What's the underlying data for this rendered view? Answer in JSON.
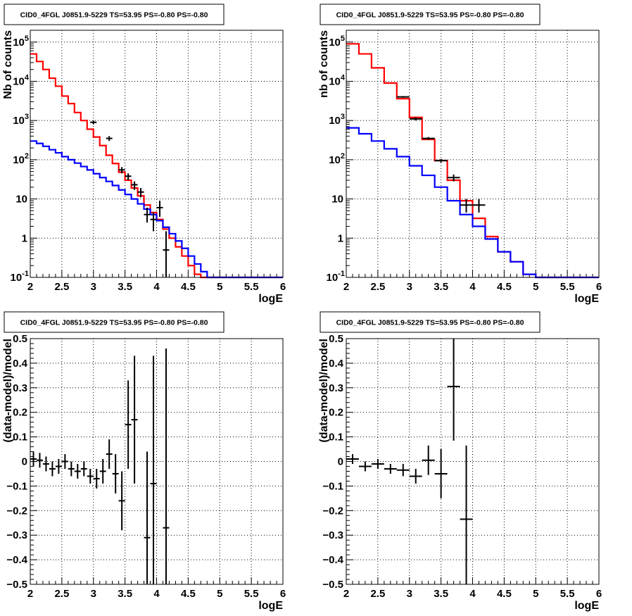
{
  "panels": [
    {
      "title": "CID0_4FGL J0851.9-5229 TS=53.95 PS=-0.80 PS=-0.80",
      "chart_data": {
        "type": "line",
        "yscale": "log",
        "xlabel": "logE",
        "ylabel": "Nb of counts",
        "xlim": [
          2,
          6
        ],
        "ylim": [
          0.1,
          200000
        ],
        "xticks": [
          "2",
          "2.5",
          "3",
          "3.5",
          "4",
          "4.5",
          "5",
          "5.5",
          "6"
        ],
        "yticks": [
          {
            "v": 0.1,
            "base": "10",
            "exp": "-1"
          },
          {
            "v": 1,
            "base": "1",
            "exp": ""
          },
          {
            "v": 10,
            "base": "10",
            "exp": ""
          },
          {
            "v": 100,
            "base": "10",
            "exp": "2"
          },
          {
            "v": 1000,
            "base": "10",
            "exp": "3"
          },
          {
            "v": 10000,
            "base": "10",
            "exp": "4"
          },
          {
            "v": 100000,
            "base": "10",
            "exp": "5"
          }
        ],
        "grid": true,
        "bin_edges": [
          2,
          2.1,
          2.2,
          2.3,
          2.4,
          2.5,
          2.6,
          2.7,
          2.8,
          2.9,
          3,
          3.1,
          3.2,
          3.3,
          3.4,
          3.5,
          3.6,
          3.7,
          3.8,
          3.9,
          4,
          4.1,
          4.2,
          4.3,
          4.4,
          4.5,
          4.6,
          4.7,
          4.8,
          4.9,
          5,
          5.1,
          5.2,
          5.3,
          5.4,
          5.5,
          5.6,
          5.7,
          5.8,
          5.9,
          6
        ],
        "series": [
          {
            "color": "#ff0000",
            "style": "step",
            "values": [
              50000,
              32000,
              20000,
              12000,
              7500,
              4200,
              2700,
              1600,
              1000,
              600,
              380,
              230,
              130,
              80,
              48,
              30,
              19,
              12,
              7,
              4.5,
              3,
              1.7,
              1,
              0.6,
              0.35,
              0.2,
              0.12,
              0.1,
              0.1,
              0.1,
              0.1,
              0.1,
              0.1,
              0.1,
              0.1,
              0.1,
              0.1,
              0.1,
              0.1,
              0.1
            ]
          },
          {
            "color": "#0000ff",
            "style": "step",
            "values": [
              300,
              260,
              220,
              180,
              150,
              120,
              100,
              82,
              67,
              55,
              44,
              35,
              28,
              22,
              17,
              13,
              10,
              7.5,
              5.5,
              4,
              2.8,
              1.9,
              1.3,
              0.85,
              0.55,
              0.35,
              0.22,
              0.14,
              0.1,
              0.1,
              0.1,
              0.1,
              0.1,
              0.1,
              0.1,
              0.1,
              0.1,
              0.1,
              0.1,
              0.1
            ]
          },
          {
            "color": "#000000",
            "style": "points",
            "x": [
              3.0,
              3.25,
              3.45,
              3.55,
              3.65,
              3.75,
              3.85,
              3.95,
              4.05,
              4.15
            ],
            "y": [
              900,
              350,
              55,
              38,
              23,
              15,
              4,
              3,
              6,
              0.5
            ],
            "ylo": [
              800,
              300,
              45,
              30,
              17,
              11,
              2.5,
              1.5,
              3.5,
              0.1
            ],
            "yhi": [
              1000,
              400,
              65,
              45,
              28,
              19,
              6,
              4.5,
              9,
              1.5
            ],
            "xerr": 0.05
          }
        ]
      }
    },
    {
      "title": "CID0_4FGL J0851.9-5229 TS=53.95 PS=-0.80 PS=-0.80",
      "chart_data": {
        "type": "line",
        "yscale": "log",
        "xlabel": "logE",
        "ylabel": "nb of counts",
        "xlim": [
          2,
          6
        ],
        "ylim": [
          0.1,
          200000
        ],
        "xticks": [
          "2",
          "2.5",
          "3",
          "3.5",
          "4",
          "4.5",
          "5",
          "5.5",
          "6"
        ],
        "yticks": [
          {
            "v": 0.1,
            "base": "10",
            "exp": "-1"
          },
          {
            "v": 1,
            "base": "1",
            "exp": ""
          },
          {
            "v": 10,
            "base": "10",
            "exp": ""
          },
          {
            "v": 100,
            "base": "10",
            "exp": "2"
          },
          {
            "v": 1000,
            "base": "10",
            "exp": "3"
          },
          {
            "v": 10000,
            "base": "10",
            "exp": "4"
          },
          {
            "v": 100000,
            "base": "10",
            "exp": "5"
          }
        ],
        "grid": true,
        "bin_edges": [
          2,
          2.2,
          2.4,
          2.6,
          2.8,
          3,
          3.2,
          3.4,
          3.6,
          3.8,
          4,
          4.2,
          4.4,
          4.6,
          4.8,
          5,
          5.2,
          5.4,
          5.6,
          5.8,
          6
        ],
        "series": [
          {
            "color": "#ff0000",
            "style": "step",
            "values": [
              90000,
              50000,
              22000,
              9000,
              3600,
              1200,
              330,
              95,
              30,
              9,
              3.2,
              1.1,
              0.45,
              0.25,
              0.12,
              0.1,
              0.1,
              0.1,
              0.1,
              0.1
            ]
          },
          {
            "color": "#0000ff",
            "style": "step",
            "values": [
              650,
              460,
              300,
              190,
              120,
              70,
              40,
              20,
              9,
              4,
              2,
              0.95,
              0.45,
              0.25,
              0.12,
              0.1,
              0.1,
              0.1,
              0.1,
              0.1
            ]
          },
          {
            "color": "#000000",
            "style": "points",
            "x": [
              2.9,
              3.1,
              3.3,
              3.5,
              3.7,
              3.9,
              4.1
            ],
            "y": [
              4000,
              1100,
              350,
              95,
              35,
              7,
              7
            ],
            "ylo": [
              3800,
              1000,
              320,
              85,
              28,
              4.5,
              4.5
            ],
            "yhi": [
              4200,
              1200,
              380,
              105,
              42,
              10,
              10
            ],
            "xerr": 0.1
          }
        ]
      }
    },
    {
      "title": "CID0_4FGL J0851.9-5229 TS=53.95 PS=-0.80 PS=-0.80",
      "chart_data": {
        "type": "scatter",
        "yscale": "linear",
        "xlabel": "logE",
        "ylabel": "(data-model)/model",
        "xlim": [
          2,
          6
        ],
        "ylim": [
          -0.5,
          0.5
        ],
        "xticks": [
          "2",
          "2.5",
          "3",
          "3.5",
          "4",
          "4.5",
          "5",
          "5.5",
          "6"
        ],
        "yticks_values": [
          -0.5,
          -0.4,
          -0.3,
          -0.2,
          -0.1,
          0,
          0.1,
          0.2,
          0.3,
          0.4,
          0.5
        ],
        "yticks_labels": [
          "−0.5",
          "−0.4",
          "−0.3",
          "−0.2",
          "−0.1",
          "0",
          "0.1",
          "0.2",
          "0.3",
          "0.4",
          "0.5"
        ],
        "grid": true,
        "series": [
          {
            "color": "#000000",
            "style": "points",
            "x": [
              2.05,
              2.15,
              2.25,
              2.35,
              2.45,
              2.55,
              2.65,
              2.75,
              2.85,
              2.95,
              3.05,
              3.15,
              3.25,
              3.35,
              3.45,
              3.55,
              3.65,
              3.85,
              3.95,
              4.15
            ],
            "y": [
              0.01,
              0.005,
              -0.01,
              -0.03,
              -0.02,
              0.0,
              -0.03,
              -0.04,
              -0.03,
              -0.06,
              -0.07,
              -0.04,
              0.03,
              -0.05,
              -0.16,
              0.15,
              0.17,
              -0.31,
              -0.09,
              -0.27
            ],
            "err": [
              0.03,
              0.03,
              0.03,
              0.03,
              0.03,
              0.03,
              0.03,
              0.03,
              0.03,
              0.03,
              0.04,
              0.05,
              0.06,
              0.08,
              0.12,
              0.18,
              0.26,
              0.35,
              0.52,
              0.73
            ],
            "xerr": 0.05
          }
        ]
      }
    },
    {
      "title": "CID0_4FGL J0851.9-5229 TS=53.95 PS=-0.80 PS=-0.80",
      "chart_data": {
        "type": "scatter",
        "yscale": "linear",
        "xlabel": "logE",
        "ylabel": "(data-model)/model",
        "xlim": [
          2,
          6
        ],
        "ylim": [
          -0.5,
          0.5
        ],
        "xticks": [
          "2",
          "2.5",
          "3",
          "3.5",
          "4",
          "4.5",
          "5",
          "5.5",
          "6"
        ],
        "yticks_values": [
          -0.5,
          -0.4,
          -0.3,
          -0.2,
          -0.1,
          0,
          0.1,
          0.2,
          0.3,
          0.4,
          0.5
        ],
        "yticks_labels": [
          "−0.5",
          "−0.4",
          "−0.3",
          "−0.2",
          "−0.1",
          "0",
          "0.1",
          "0.2",
          "0.3",
          "0.4",
          "0.5"
        ],
        "grid": true,
        "series": [
          {
            "color": "#000000",
            "style": "points",
            "x": [
              2.1,
              2.3,
              2.5,
              2.7,
              2.9,
              3.1,
              3.3,
              3.5,
              3.7,
              3.9
            ],
            "y": [
              0.01,
              -0.02,
              -0.01,
              -0.03,
              -0.035,
              -0.06,
              0.005,
              -0.05,
              0.305,
              -0.235
            ],
            "err": [
              0.02,
              0.02,
              0.02,
              0.02,
              0.025,
              0.03,
              0.06,
              0.1,
              0.22,
              0.3
            ],
            "xerr": 0.1
          }
        ]
      }
    }
  ]
}
